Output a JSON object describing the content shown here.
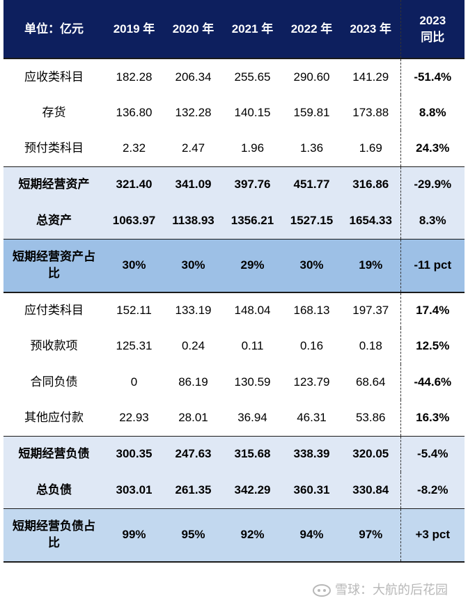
{
  "header": {
    "unit": "单位：亿元",
    "cols": [
      "2019 年",
      "2020 年",
      "2021 年",
      "2022 年",
      "2023 年"
    ],
    "last": "2023 同比"
  },
  "rows": [
    {
      "label": "应收类科目",
      "v": [
        "182.28",
        "206.34",
        "255.65",
        "290.60",
        "141.29"
      ],
      "yoy": "-51.4%"
    },
    {
      "label": "存货",
      "v": [
        "136.80",
        "132.28",
        "140.15",
        "159.81",
        "173.88"
      ],
      "yoy": "8.8%"
    },
    {
      "label": "预付类科目",
      "v": [
        "2.32",
        "2.47",
        "1.96",
        "1.36",
        "1.69"
      ],
      "yoy": "24.3%"
    },
    {
      "label": "短期经营资产",
      "v": [
        "321.40",
        "341.09",
        "397.76",
        "451.77",
        "316.86"
      ],
      "yoy": "-29.9%"
    },
    {
      "label": "总资产",
      "v": [
        "1063.97",
        "1138.93",
        "1356.21",
        "1527.15",
        "1654.33"
      ],
      "yoy": "8.3%"
    },
    {
      "label": "短期经营资产占比",
      "v": [
        "30%",
        "30%",
        "29%",
        "30%",
        "19%"
      ],
      "yoy": "-11 pct"
    },
    {
      "label": "应付类科目",
      "v": [
        "152.11",
        "133.19",
        "148.04",
        "168.13",
        "197.37"
      ],
      "yoy": "17.4%"
    },
    {
      "label": "预收款项",
      "v": [
        "125.31",
        "0.24",
        "0.11",
        "0.16",
        "0.18"
      ],
      "yoy": "12.5%"
    },
    {
      "label": "合同负债",
      "v": [
        "0",
        "86.19",
        "130.59",
        "123.79",
        "68.64"
      ],
      "yoy": "-44.6%"
    },
    {
      "label": "其他应付款",
      "v": [
        "22.93",
        "28.01",
        "36.94",
        "46.31",
        "53.86"
      ],
      "yoy": "16.3%"
    },
    {
      "label": "短期经营负债",
      "v": [
        "300.35",
        "247.63",
        "315.68",
        "338.39",
        "320.05"
      ],
      "yoy": "-5.4%"
    },
    {
      "label": "总负债",
      "v": [
        "303.01",
        "261.35",
        "342.29",
        "360.31",
        "330.84"
      ],
      "yoy": "-8.2%"
    },
    {
      "label": "短期经营负债占比",
      "v": [
        "99%",
        "95%",
        "92%",
        "94%",
        "97%"
      ],
      "yoy": "+3 pct"
    }
  ],
  "watermark": "雪球：大航的后花园",
  "icons": {
    "watermark": "snowball-logo-icon"
  }
}
